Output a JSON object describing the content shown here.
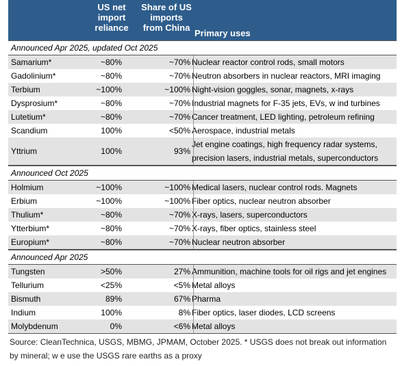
{
  "header": {
    "col_reliance": "US net\nimport\nreliance",
    "col_share": "Share of US\nimports\nfrom China",
    "col_uses": "Primary uses"
  },
  "sections": [
    {
      "title": "Announced Apr 2025, updated Oct 2025",
      "rows": [
        {
          "element": "Samarium*",
          "reliance": "~80%",
          "share": "~70%",
          "uses": "Nuclear reactor control rods, small motors"
        },
        {
          "element": "Gadolinium*",
          "reliance": "~80%",
          "share": "~70%",
          "uses": "Neutron absorbers in nuclear reactors, MRI imaging"
        },
        {
          "element": "Terbium",
          "reliance": "~100%",
          "share": "~100%",
          "uses": "Night-vision goggles, sonar, magnets, x-rays"
        },
        {
          "element": "Dysprosium*",
          "reliance": "~80%",
          "share": "~70%",
          "uses": "Industrial magnets for F-35 jets, EVs, w ind turbines"
        },
        {
          "element": "Lutetium*",
          "reliance": "~80%",
          "share": "~70%",
          "uses": "Cancer treatment, LED lighting, petroleum refining"
        },
        {
          "element": "Scandium",
          "reliance": "100%",
          "share": "<50%",
          "uses": "Aerospace, industrial metals"
        },
        {
          "element": "Yttrium",
          "reliance": "100%",
          "share": "93%",
          "uses": "Jet engine coatings, high frequency radar systems, precision lasers, industrial metals, superconductors"
        }
      ]
    },
    {
      "title": "Announced Oct 2025",
      "rows": [
        {
          "element": "Holmium",
          "reliance": "~100%",
          "share": "~100%",
          "uses": "Medical lasers, nuclear control rods. Magnets"
        },
        {
          "element": "Erbium",
          "reliance": "~100%",
          "share": "~100%",
          "uses": "Fiber optics, nuclear neutron absorber"
        },
        {
          "element": "Thulium*",
          "reliance": "~80%",
          "share": "~70%",
          "uses": "X-rays, lasers, superconductors"
        },
        {
          "element": "Ytterbium*",
          "reliance": "~80%",
          "share": "~70%",
          "uses": "X-rays, fiber optics, stainless steel"
        },
        {
          "element": "Europium*",
          "reliance": "~80%",
          "share": "~70%",
          "uses": "Nuclear neutron absorber"
        }
      ]
    },
    {
      "title": "Announced Apr 2025",
      "rows": [
        {
          "element": "Tungsten",
          "reliance": ">50%",
          "share": "27%",
          "uses": "Ammunition, machine tools for oil rigs and jet engines"
        },
        {
          "element": "Tellurium",
          "reliance": "<25%",
          "share": "<5%",
          "uses": "Metal alloys"
        },
        {
          "element": "Bismuth",
          "reliance": "89%",
          "share": "67%",
          "uses": "Pharma"
        },
        {
          "element": "Indium",
          "reliance": "100%",
          "share": "8%",
          "uses": "Fiber optics, laser diodes, LCD screens"
        },
        {
          "element": "Molybdenum",
          "reliance": "0%",
          "share": "<6%",
          "uses": "Metal alloys"
        }
      ]
    }
  ],
  "source_note": "Source: CleanTechnica, USGS, MBMG, JPMAM, October 2025. * USGS does not break out information by mineral; w e use the USGS rare earths as a proxy"
}
